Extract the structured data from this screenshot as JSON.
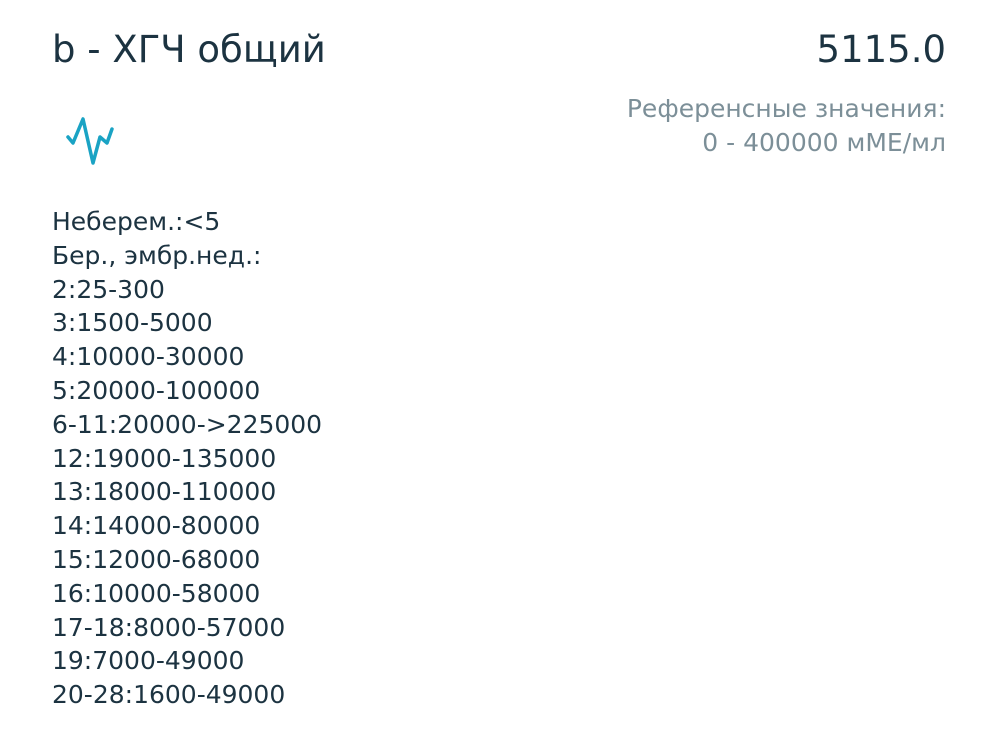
{
  "header": {
    "title": "b - ХГЧ общий",
    "value": "5115.0"
  },
  "reference": {
    "label": "Референсные значения:",
    "range": "0 - 400000 мМЕ/мл"
  },
  "icon": {
    "name": "activity-pulse-icon",
    "color": "#1aa3c4"
  },
  "notes": [
    "Неберем.:<5",
    "Бер., эмбр.нед.:",
    "2:25-300",
    "3:1500-5000",
    "4:10000-30000",
    "5:20000-100000",
    "6-11:20000->225000",
    "12:19000-135000",
    "13:18000-110000",
    "14:14000-80000",
    "15:12000-68000",
    "16:10000-58000",
    "17-18:8000-57000",
    "19:7000-49000",
    "20-28:1600-49000"
  ]
}
